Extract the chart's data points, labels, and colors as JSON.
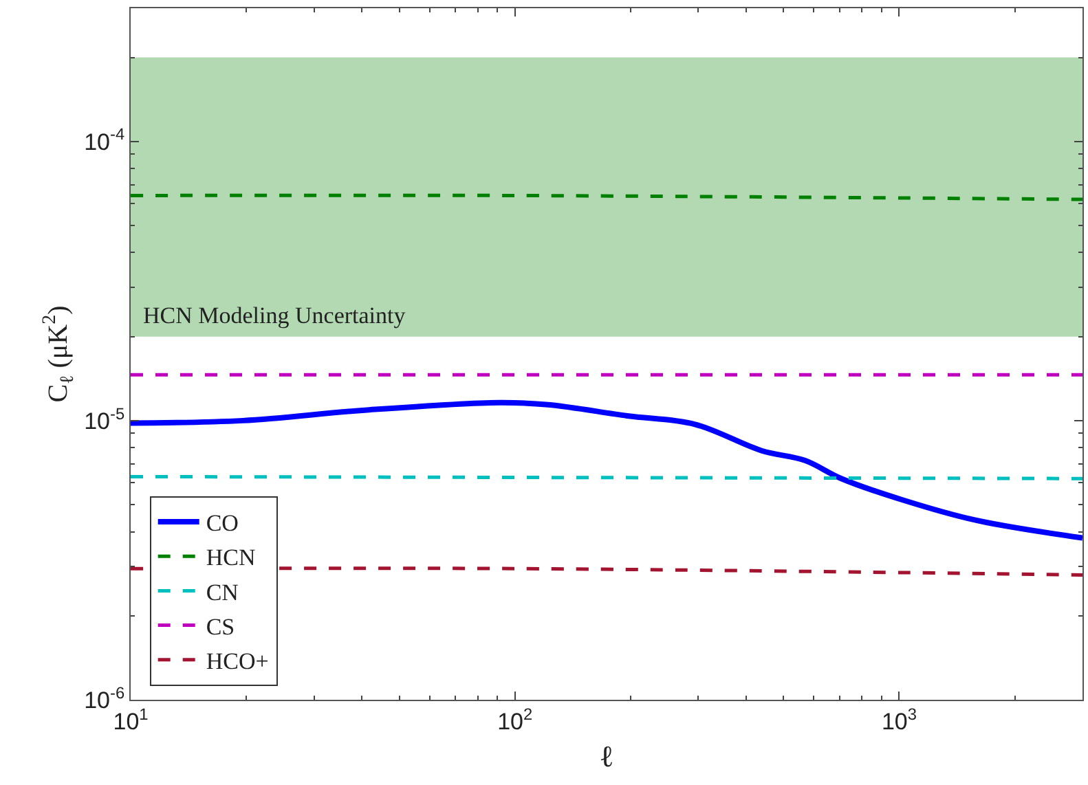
{
  "chart_data": {
    "type": "line",
    "xlabel": "ℓ",
    "ylabel": "C$_{ℓ}$ (μK$^{2}$)",
    "log": "xy",
    "grid": false,
    "legend": "bottom left",
    "line_style": "dashed",
    "marker": "none",
    "xlim": [
      10,
      3000
    ],
    "ylim": [
      1e-06,
      0.0003
    ],
    "xticks": [
      {
        "value": 10,
        "label": "10$^{1}$"
      },
      {
        "value": 100,
        "label": "10$^{2}$"
      },
      {
        "value": 1000,
        "label": "10$^{3}$"
      }
    ],
    "yticks": [
      {
        "value": 1e-06,
        "label": "10$^{-6}$"
      },
      {
        "value": 1e-05,
        "label": "10$^{-5}$"
      },
      {
        "value": 0.0001,
        "label": "10$^{-4}$"
      }
    ],
    "bands": [
      {
        "axis": "y",
        "from": 2e-05,
        "to": 0.0002,
        "label": "HCN Modeling Uncertainty",
        "color": "#b3d9b3"
      }
    ],
    "series": [
      {
        "name": "CO",
        "color": "#0000ff",
        "line_style": "solid",
        "x": [
          10,
          19.6,
          40.7,
          91,
          122,
          196,
          294,
          439,
          568,
          707,
          1020,
          1580,
          3000
        ],
        "values": [
          9.8e-06,
          1e-05,
          1.09e-05,
          1.16e-05,
          1.14e-05,
          1.04e-05,
          9.7e-06,
          7.8e-06,
          7.2e-06,
          6.2e-06,
          5.2e-06,
          4.4e-06,
          3.8e-06
        ]
      },
      {
        "name": "HCN",
        "color": "#008000",
        "x": [
          10,
          100,
          3000
        ],
        "values": [
          6.4e-05,
          6.4e-05,
          6.2e-05
        ]
      },
      {
        "name": "CN",
        "color": "#00bfbf",
        "x": [
          10,
          3000
        ],
        "values": [
          6.3e-06,
          6.2e-06
        ]
      },
      {
        "name": "CS",
        "color": "#bf00bf",
        "x": [
          10,
          3000
        ],
        "values": [
          1.46e-05,
          1.46e-05
        ]
      },
      {
        "name": "HCO+",
        "color": "#a2142f",
        "x": [
          10,
          100,
          3000
        ],
        "values": [
          2.95e-06,
          2.95e-06,
          2.8e-06
        ]
      }
    ]
  }
}
